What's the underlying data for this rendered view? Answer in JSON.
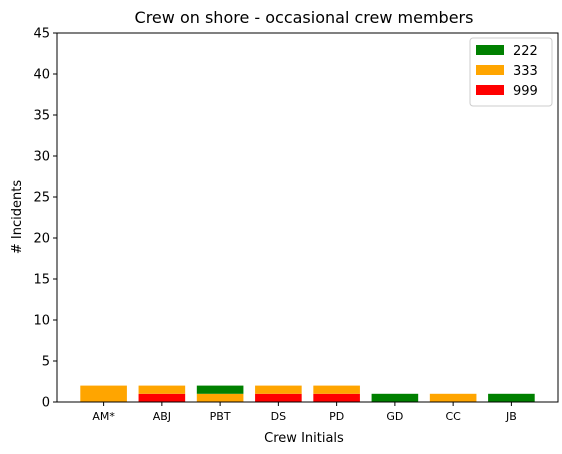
{
  "chart_data": {
    "type": "bar",
    "stacked": true,
    "title": "Crew on shore - occasional crew members",
    "xlabel": "Crew Initials",
    "ylabel": "# Incidents",
    "ylim": [
      0,
      45
    ],
    "yticks": [
      0,
      5,
      10,
      15,
      20,
      25,
      30,
      35,
      40,
      45
    ],
    "categories": [
      "AM*",
      "ABJ",
      "PBT",
      "DS",
      "PD",
      "GD",
      "CC",
      "JB"
    ],
    "stack_order": [
      "999",
      "333",
      "222"
    ],
    "series": [
      {
        "name": "222",
        "color": "#008000",
        "values": [
          0,
          0,
          1,
          0,
          0,
          1,
          0,
          1
        ]
      },
      {
        "name": "333",
        "color": "#FFA500",
        "values": [
          2,
          1,
          1,
          1,
          1,
          0,
          1,
          0
        ]
      },
      {
        "name": "999",
        "color": "#FF0000",
        "values": [
          0,
          1,
          0,
          1,
          1,
          0,
          0,
          0
        ]
      }
    ],
    "legend": {
      "position": "top-right",
      "entries": [
        "222",
        "333",
        "999"
      ]
    },
    "grid": false
  }
}
